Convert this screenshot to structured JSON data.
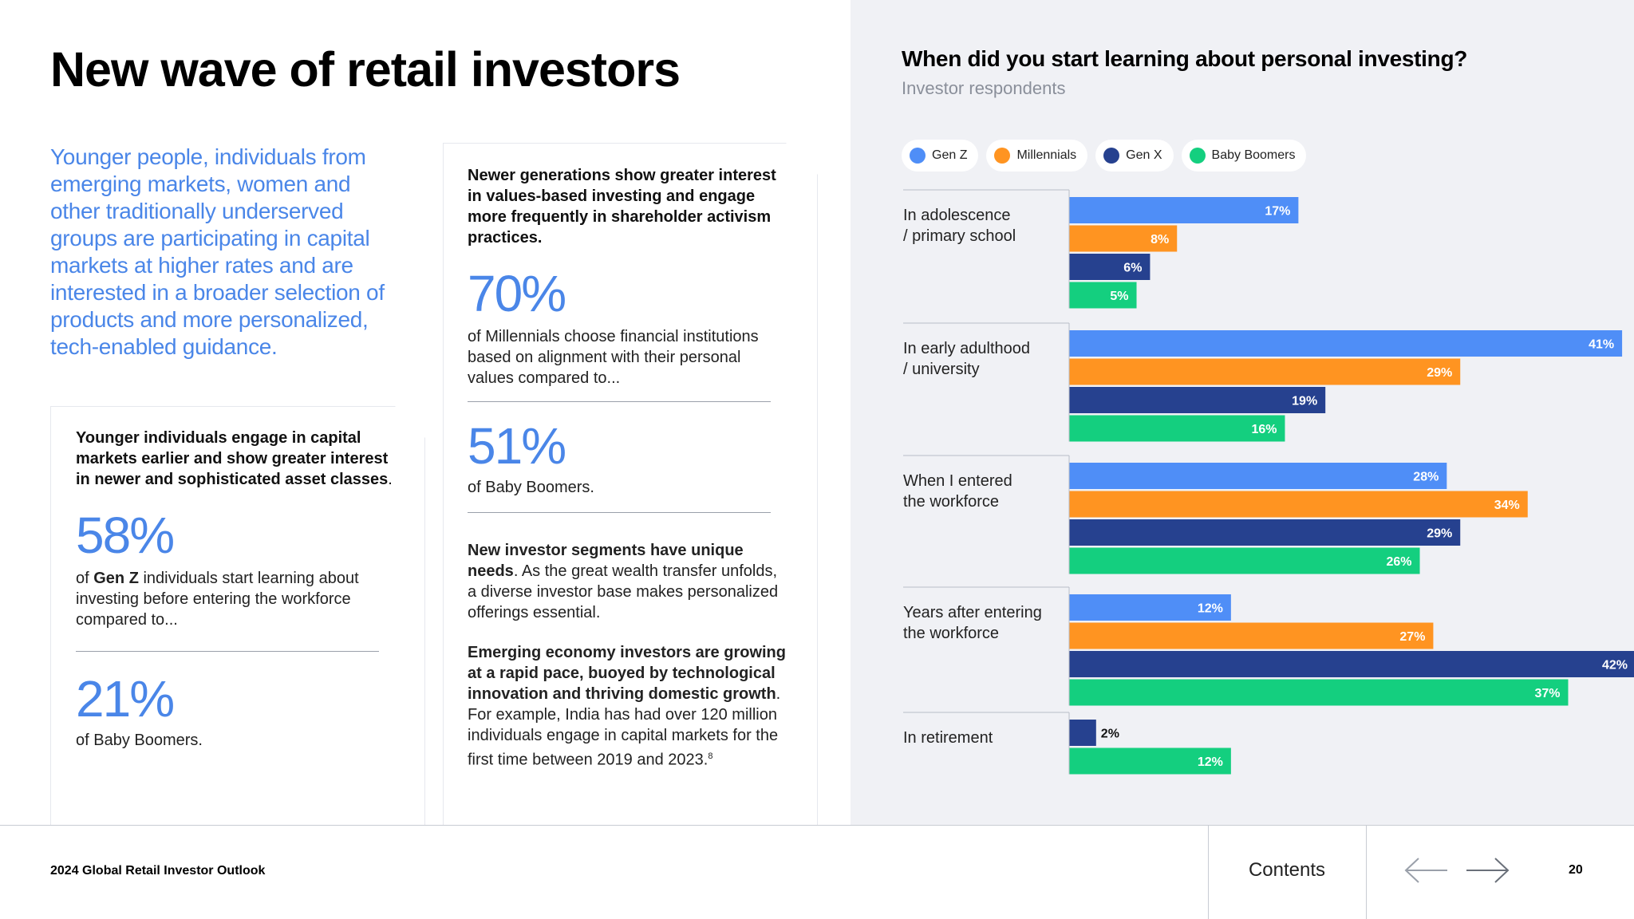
{
  "page": {
    "title": "New wave of retail investors",
    "intro": "Younger people, individuals from emerging markets, women and other traditionally underserved groups are participating in capital markets at higher rates and are interested in a broader selection of products and more personalized, tech-enabled guidance."
  },
  "card_a": {
    "lead_bold": "Younger individuals engage in capital markets earlier and show greater interest in newer and sophisticated asset classes",
    "lead_end": ".",
    "stat1_value": "58%",
    "stat1_pre": "of ",
    "stat1_bold": "Gen Z",
    "stat1_post": " individuals start learning about investing before entering the workforce compared to...",
    "stat2_value": "21%",
    "stat2_text": "of Baby Boomers."
  },
  "card_b": {
    "lead": "Newer generations show greater interest in values-based investing and engage more frequently in shareholder activism practices.",
    "stat1_value": "70%",
    "stat1_text": "of Millennials choose financial institutions based on alignment with their personal values compared to...",
    "stat2_value": "51%",
    "stat2_text": "of Baby Boomers.",
    "para1_bold": "New investor segments have unique needs",
    "para1_text": ". As the great wealth transfer unfolds, a diverse investor base makes personalized offerings essential.",
    "para2_bold": "Emerging economy investors are growing at a rapid pace, buoyed by technological innovation and thriving domestic growth",
    "para2_text": ". For example, India has had over 120 million individuals engage in capital markets for the first time between 2019 and 2023.",
    "para2_sup": "8"
  },
  "chart_data": {
    "type": "bar",
    "orientation": "horizontal",
    "title": "When did you start learning about personal investing?",
    "subtitle": "Investor respondents",
    "value_suffix": "%",
    "categories": [
      [
        "In adolescence",
        "/ primary school"
      ],
      [
        "In early adulthood",
        "/ university"
      ],
      [
        "When I entered",
        "the workforce"
      ],
      [
        "Years after entering",
        "the workforce"
      ],
      [
        "In retirement"
      ]
    ],
    "series": [
      {
        "name": "Gen Z",
        "color": "#4f8ef7",
        "values": [
          17,
          41,
          28,
          12,
          null
        ]
      },
      {
        "name": "Millennials",
        "color": "#ff9421",
        "values": [
          8,
          29,
          34,
          27,
          null
        ]
      },
      {
        "name": "Gen X",
        "color": "#26418f",
        "values": [
          6,
          19,
          29,
          42,
          2
        ]
      },
      {
        "name": "Baby Boomers",
        "color": "#14cf7f",
        "values": [
          5,
          16,
          26,
          37,
          12
        ]
      }
    ],
    "xlim": [
      0,
      42
    ],
    "legend": "top"
  },
  "footer": {
    "report": "2024 Global Retail Investor Outlook",
    "contents": "Contents",
    "page_number": "20",
    "prev_icon": "arrow-left-icon",
    "next_icon": "arrow-right-icon"
  }
}
